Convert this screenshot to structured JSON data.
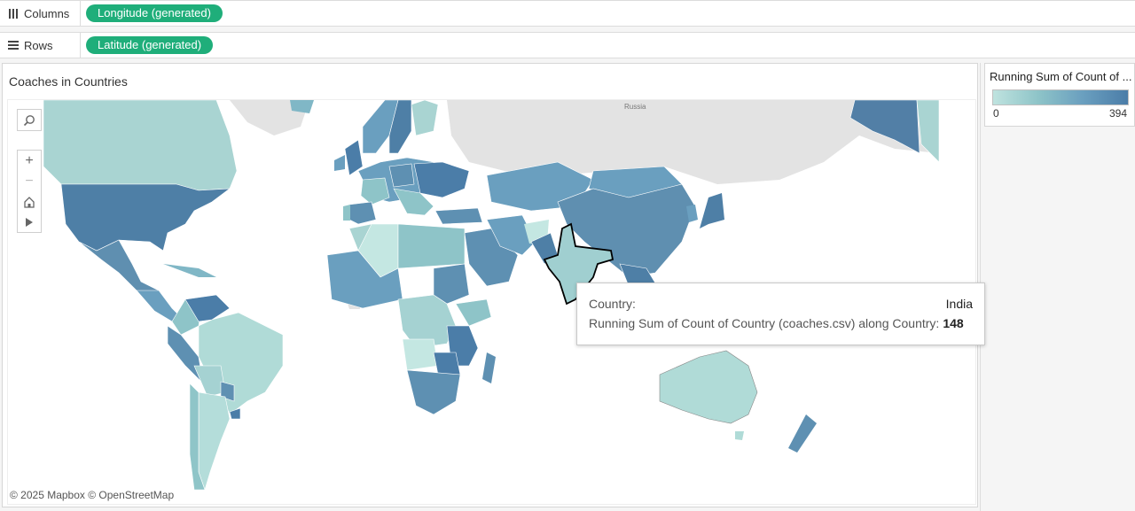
{
  "shelves": {
    "columns": {
      "label": "Columns",
      "pill": "Longitude (generated)"
    },
    "rows": {
      "label": "Rows",
      "pill": "Latitude (generated)"
    }
  },
  "viz": {
    "title": "Coaches in Countries",
    "map_labels": {
      "russia": "Russia"
    },
    "attribution": "© 2025 Mapbox  © OpenStreetMap"
  },
  "tooltip": {
    "country_label": "Country:",
    "country_value": "India",
    "measure_label": "Running Sum of Count of Country (coaches.csv) along Country:",
    "measure_value": "148"
  },
  "legend": {
    "title": "Running Sum of Count of ...",
    "min": "0",
    "max": "394",
    "color_low": "#bfe3df",
    "color_high": "#4b7da8"
  },
  "map_tools": [
    "search-icon",
    "zoom-in-icon",
    "zoom-out-icon",
    "home-icon",
    "play-icon"
  ],
  "colors": {
    "pill": "#1fae7a",
    "land_unfilled": "#e3e3e3",
    "highlight_outline": "#000000"
  }
}
